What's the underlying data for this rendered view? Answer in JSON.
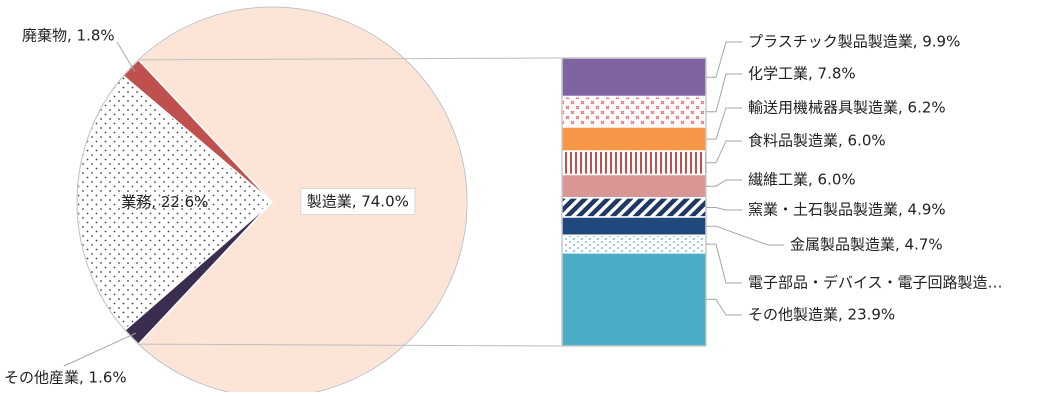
{
  "chart_data": [
    {
      "type": "pie",
      "slices": [
        {
          "label": "製造業",
          "value": 74.0,
          "display": "製造業, 74.0%",
          "color": "#FCE4D6",
          "pattern": "solid"
        },
        {
          "label": "その他産業",
          "value": 1.6,
          "display": "その他産業, 1.6%",
          "color": "#3B2D4F",
          "pattern": "solid"
        },
        {
          "label": "業務",
          "value": 22.6,
          "display": "業務, 22.6%",
          "color": "#FFFFFF",
          "pattern": "dots"
        },
        {
          "label": "廃棄物",
          "value": 1.8,
          "display": "廃棄物, 1.8%",
          "color": "#C0504D",
          "pattern": "solid"
        }
      ]
    },
    {
      "type": "bar",
      "stacked": true,
      "segments": [
        {
          "label": "プラスチック製品製造業",
          "value": 9.9,
          "display": "プラスチック製品製造業, 9.9%",
          "color": "#8064A2",
          "pattern": "solid"
        },
        {
          "label": "化学工業",
          "value": 7.8,
          "display": "化学工業, 7.8%",
          "color": "#E46C6C",
          "pattern": "crosses"
        },
        {
          "label": "輸送用機械器具製造業",
          "value": 6.2,
          "display": "輸送用機械器具製造業, 6.2%",
          "color": "#F79646",
          "pattern": "solid"
        },
        {
          "label": "食料品製造業",
          "value": 6.0,
          "display": "食料品製造業, 6.0%",
          "color": "#C0504D",
          "pattern": "vlines"
        },
        {
          "label": "繊維工業",
          "value": 6.0,
          "display": "繊維工業, 6.0%",
          "color": "#DA9694",
          "pattern": "solid"
        },
        {
          "label": "窯業・土石製品製造業",
          "value": 4.9,
          "display": "窯業・土石製品製造業, 4.9%",
          "color": "#1F3864",
          "pattern": "diag"
        },
        {
          "label": "金属製品製造業",
          "value": 4.7,
          "display": "金属製品製造業, 4.7%",
          "color": "#1F497D",
          "pattern": "solid"
        },
        {
          "label": "電子部品・デバイス・電子回路製造業",
          "value": 4.5,
          "display": "電子部品・デバイス・電子回路製造…",
          "color": "#4BACC6",
          "pattern": "dots"
        },
        {
          "label": "その他製造業",
          "value": 23.9,
          "display": "その他製造業, 23.9%",
          "color": "#4BACC6",
          "pattern": "solid"
        }
      ]
    }
  ]
}
